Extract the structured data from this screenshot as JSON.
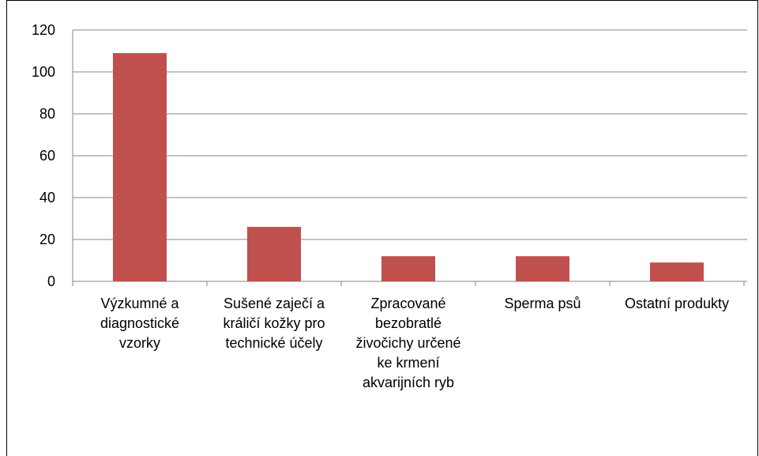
{
  "chart_data": {
    "type": "bar",
    "categories": [
      "Výzkumné a diagnostické vzorky",
      "Sušené zaječí a králičí kožky pro technické účely",
      "Zpracované bezobratlé živočichy určené ke krmení akvarijních ryb",
      "Sperma psů",
      "Ostatní produkty"
    ],
    "values": [
      109,
      26,
      12,
      12,
      9
    ],
    "color": "#c0504d",
    "ylim": [
      0,
      120
    ],
    "yticks": [
      0,
      20,
      40,
      60,
      80,
      100,
      120
    ],
    "grid": true
  }
}
